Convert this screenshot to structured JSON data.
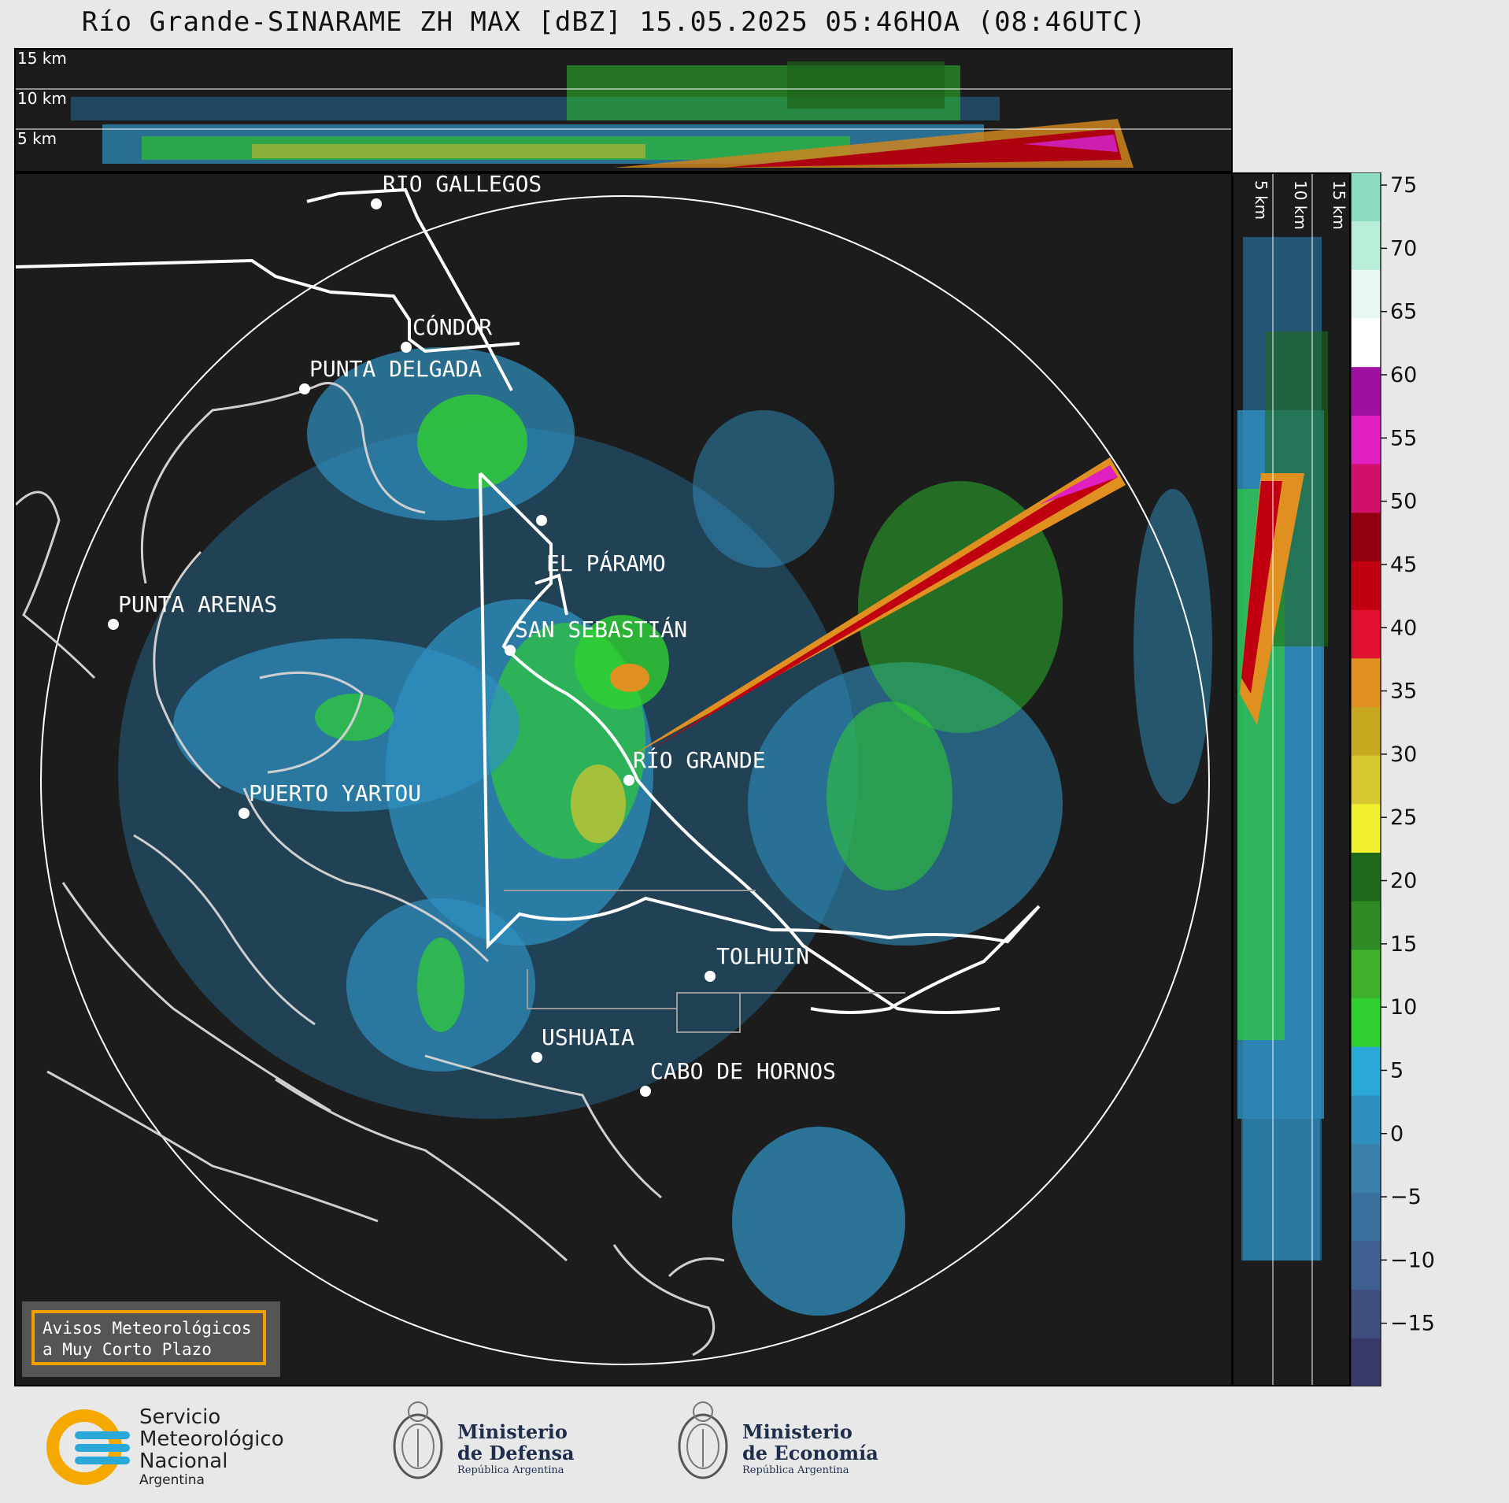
{
  "title": "Río Grande-SINARAME ZH MAX [dBZ] 15.05.2025 05:46HOA (08:46UTC)",
  "height_labels": {
    "h15": "15 km",
    "h10": "10 km",
    "h5": "5 km"
  },
  "cities": [
    {
      "name": "RÍO GALLEGOS"
    },
    {
      "name": "CÓNDOR"
    },
    {
      "name": "PUNTA DELGADA"
    },
    {
      "name": "EL PÁRAMO"
    },
    {
      "name": "PUNTA ARENAS"
    },
    {
      "name": "SAN SEBASTIÁN"
    },
    {
      "name": "RÍO GRANDE"
    },
    {
      "name": "PUERTO YARTOU"
    },
    {
      "name": "TOLHUIN"
    },
    {
      "name": "USHUAIA"
    },
    {
      "name": "CABO DE HORNOS"
    }
  ],
  "warning": {
    "line1": "Avisos Meteorológicos",
    "line2": "a Muy Corto Plazo"
  },
  "colorbar": {
    "unit": "dBZ",
    "ticks": [
      "75",
      "70",
      "65",
      "60",
      "55",
      "50",
      "45",
      "40",
      "35",
      "30",
      "25",
      "20",
      "15",
      "10",
      "5",
      "0",
      "−5",
      "−10",
      "−15"
    ],
    "colors": [
      "#3a3a6a",
      "#3e4d7e",
      "#3e5f90",
      "#3a709e",
      "#3a80ad",
      "#2f90c0",
      "#2aa8d8",
      "#2fd030",
      "#3fb02a",
      "#2e8a24",
      "#1e6a1a",
      "#f0f030",
      "#d8c830",
      "#c8a820",
      "#e09020",
      "#e01030",
      "#c00010",
      "#900010",
      "#d0106a",
      "#e020c0",
      "#a010a0",
      "#ffffff",
      "#e8f8f0",
      "#b8eed8",
      "#8cdcc0"
    ]
  },
  "logos": {
    "smn": {
      "l1": "Servicio",
      "l2": "Meteorológico",
      "l3": "Nacional",
      "l4": "Argentina"
    },
    "defensa": {
      "l1": "Ministerio",
      "l2": "de Defensa",
      "l3": "República Argentina"
    },
    "economia": {
      "l1": "Ministerio",
      "l2": "de Economía",
      "l3": "República Argentina"
    }
  }
}
